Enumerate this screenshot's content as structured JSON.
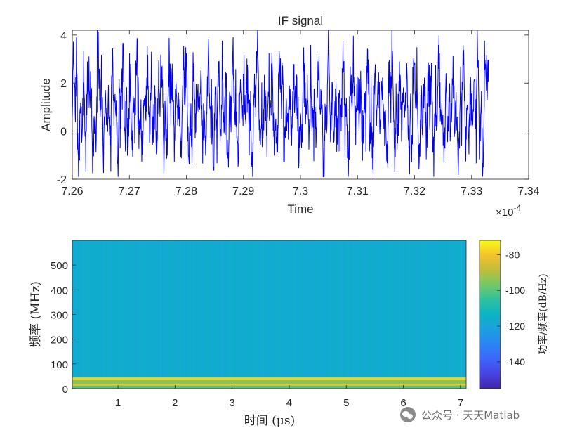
{
  "chart_data": [
    {
      "type": "line",
      "title": "IF signal",
      "xlabel": "Time",
      "ylabel": "Amplitude",
      "x_exponent_label": "×10",
      "x_exponent": "-4",
      "xlim": [
        7.26,
        7.34
      ],
      "ylim": [
        -2,
        4.2
      ],
      "xticks": [
        "7.26",
        "7.27",
        "7.28",
        "7.29",
        "7.3",
        "7.31",
        "7.32",
        "7.33",
        "7.34"
      ],
      "yticks": [
        "-2",
        "0",
        "2",
        "4"
      ],
      "series": [
        {
          "color": "#0000ff",
          "x_range": [
            7.26,
            7.333
          ],
          "approx_period": 0.00168,
          "baseline": 0.9,
          "peak_max": 4.2,
          "trough_min": -1.9
        }
      ]
    },
    {
      "type": "heatmap",
      "xlabel": "时间 (μs)",
      "ylabel": "频率 (MHz)",
      "xlim": [
        0.2,
        7.1
      ],
      "ylim": [
        0,
        600
      ],
      "xticks": [
        "1",
        "2",
        "3",
        "4",
        "5",
        "6",
        "7"
      ],
      "yticks": [
        "0",
        "100",
        "200",
        "300",
        "400",
        "500"
      ],
      "background_level_db": -117,
      "bands": [
        {
          "center_mhz": 38,
          "level_db": -78
        },
        {
          "center_mhz": 16,
          "level_db": -82
        },
        {
          "center_mhz": 27,
          "level_db": -95
        },
        {
          "center_mhz": 5,
          "level_db": -100
        }
      ],
      "colorbar": {
        "label": "功率/频率(dB/Hz)",
        "range": [
          -155,
          -72
        ],
        "ticks": [
          "-80",
          "-100",
          "-120",
          "-140"
        ],
        "colormap": "parula"
      }
    }
  ],
  "watermark": {
    "text": "公众号 · 天天Matlab",
    "icon": "wechat-icon"
  }
}
